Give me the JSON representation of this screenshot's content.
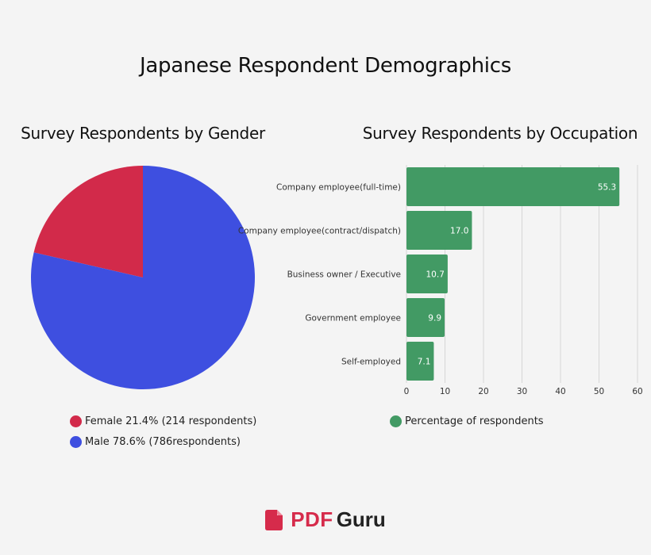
{
  "title": "Japanese Respondent Demographics",
  "brand": {
    "pdf": "PDF",
    "guru": "Guru",
    "icon": "pdf-file-icon",
    "color": "#d62b4b"
  },
  "chart_data": [
    {
      "type": "pie",
      "title": "Survey Respondents by Gender",
      "slices": [
        {
          "label": "Female",
          "value": 21.4,
          "color": "#d22a4a",
          "legend": "Female 21.4%  (214 respondents)"
        },
        {
          "label": "Male",
          "value": 78.6,
          "color": "#3e4fe0",
          "legend": "Male 78.6%  (786respondents)"
        }
      ]
    },
    {
      "type": "bar",
      "orientation": "horizontal",
      "title": "Survey Respondents by Occupation",
      "categories": [
        "Company employee(full-time)",
        "Company employee(contract/dispatch)",
        "Business owner / Executive",
        "Government employee",
        "Self-employed"
      ],
      "series": [
        {
          "name": "Percentage of respondents",
          "values": [
            55.3,
            17.0,
            10.7,
            9.9,
            7.1
          ],
          "labels": [
            "55.3",
            "17.0",
            "10.7",
            "9.9",
            "7.1"
          ],
          "color": "#429a64"
        }
      ],
      "xlim": [
        0,
        60
      ],
      "xticks": [
        0,
        10,
        20,
        30,
        40,
        50,
        60
      ],
      "grid": true,
      "legend_position": "bottom"
    }
  ]
}
